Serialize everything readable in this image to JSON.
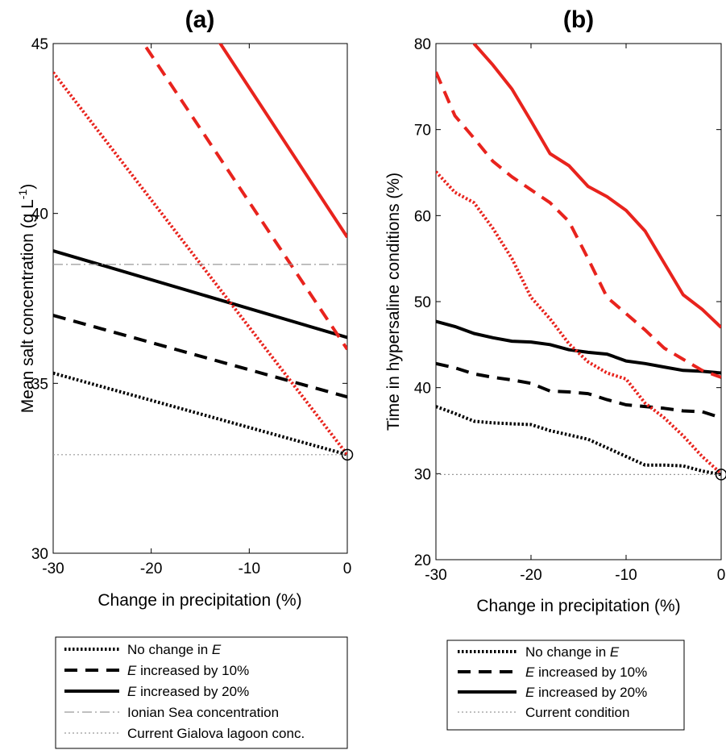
{
  "chart_data": [
    {
      "type": "line",
      "title": "(a)",
      "xlabel": "Change in precipitation (%)",
      "ylabel": "Mean salt concentration (g L",
      "ylabel_sup": "-1",
      "ylabel_close": ")",
      "xlim": [
        -30,
        0
      ],
      "ylim": [
        30,
        45
      ],
      "xticks": [
        -30,
        -20,
        -10,
        0
      ],
      "yticks": [
        30,
        35,
        40,
        45
      ],
      "legend": [
        {
          "label": "No change in ",
          "label_italic": "E",
          "style": "dotted"
        },
        {
          "label": " increased by 10%",
          "label_italic_prefix": "E",
          "style": "dashed"
        },
        {
          "label": " increased by 20%",
          "label_italic_prefix": "E",
          "style": "solid"
        },
        {
          "label": "Ionian Sea concentration",
          "style": "dashdot"
        },
        {
          "label": "Current Gialova lagoon conc.",
          "style": "thin-dotted"
        }
      ],
      "series": [
        {
          "color": "#000000",
          "style": "dotted",
          "points": [
            [
              -30,
              35.3
            ],
            [
              0,
              32.9
            ]
          ]
        },
        {
          "color": "#000000",
          "style": "dashed",
          "points": [
            [
              -30,
              37.0
            ],
            [
              0,
              34.6
            ]
          ]
        },
        {
          "color": "#000000",
          "style": "solid",
          "points": [
            [
              -30,
              38.9
            ],
            [
              0,
              36.35
            ]
          ]
        },
        {
          "color": "#e8231d",
          "style": "dotted",
          "points": [
            [
              -30,
              44.15
            ],
            [
              0,
              32.9
            ]
          ]
        },
        {
          "color": "#e8231d",
          "style": "dashed",
          "points": [
            [
              -30,
              49.0
            ],
            [
              0,
              36.0
            ]
          ]
        },
        {
          "color": "#e8231d",
          "style": "solid",
          "points": [
            [
              -30,
              52.5
            ],
            [
              0,
              39.3
            ]
          ]
        },
        {
          "color": "#999999",
          "style": "dashdot",
          "points": [
            [
              -30,
              38.5
            ],
            [
              0,
              38.5
            ]
          ]
        },
        {
          "color": "#999999",
          "style": "thin-dotted",
          "points": [
            [
              -30,
              32.9
            ],
            [
              0,
              32.9
            ]
          ]
        }
      ],
      "marker": {
        "x": 0,
        "y": 32.9,
        "shape": "circle"
      }
    },
    {
      "type": "line",
      "title": "(b)",
      "xlabel": "Change in precipitation (%)",
      "ylabel": "Time in hypersaline conditions (%)",
      "xlim": [
        -30,
        0
      ],
      "ylim": [
        20,
        80
      ],
      "xticks": [
        -30,
        -20,
        -10,
        0
      ],
      "yticks": [
        20,
        30,
        40,
        50,
        60,
        70,
        80
      ],
      "legend": [
        {
          "label": "No change in ",
          "label_italic": "E",
          "style": "dotted"
        },
        {
          "label": " increased by 10%",
          "label_italic_prefix": "E",
          "style": "dashed"
        },
        {
          "label": " increased by 20%",
          "label_italic_prefix": "E",
          "style": "solid"
        },
        {
          "label": "Current condition",
          "style": "thin-dotted"
        }
      ],
      "series": [
        {
          "color": "#000000",
          "style": "dotted",
          "points": [
            [
              -30,
              37.8
            ],
            [
              -28,
              37.0
            ],
            [
              -26,
              36.1
            ],
            [
              -24,
              35.9
            ],
            [
              -22,
              35.8
            ],
            [
              -20,
              35.7
            ],
            [
              -18,
              35.0
            ],
            [
              -16,
              34.5
            ],
            [
              -14,
              34.0
            ],
            [
              -12,
              33.0
            ],
            [
              -10,
              32.0
            ],
            [
              -8,
              31.0
            ],
            [
              -6,
              31.0
            ],
            [
              -4,
              30.9
            ],
            [
              -2,
              30.3
            ],
            [
              0,
              29.9
            ]
          ]
        },
        {
          "color": "#000000",
          "style": "dashed",
          "points": [
            [
              -30,
              42.8
            ],
            [
              -28,
              42.3
            ],
            [
              -26,
              41.6
            ],
            [
              -24,
              41.2
            ],
            [
              -22,
              40.9
            ],
            [
              -20,
              40.5
            ],
            [
              -18,
              39.6
            ],
            [
              -16,
              39.5
            ],
            [
              -14,
              39.3
            ],
            [
              -12,
              38.6
            ],
            [
              -10,
              38.0
            ],
            [
              -8,
              37.8
            ],
            [
              -6,
              37.6
            ],
            [
              -4,
              37.3
            ],
            [
              -2,
              37.2
            ],
            [
              0,
              36.5
            ]
          ]
        },
        {
          "color": "#000000",
          "style": "solid",
          "points": [
            [
              -30,
              47.7
            ],
            [
              -28,
              47.1
            ],
            [
              -26,
              46.3
            ],
            [
              -24,
              45.8
            ],
            [
              -22,
              45.4
            ],
            [
              -20,
              45.3
            ],
            [
              -18,
              45.0
            ],
            [
              -16,
              44.4
            ],
            [
              -14,
              44.1
            ],
            [
              -12,
              43.9
            ],
            [
              -10,
              43.1
            ],
            [
              -8,
              42.8
            ],
            [
              -6,
              42.4
            ],
            [
              -4,
              42.0
            ],
            [
              -2,
              41.9
            ],
            [
              0,
              41.7
            ]
          ]
        },
        {
          "color": "#e8231d",
          "style": "dotted",
          "points": [
            [
              -30,
              65.1
            ],
            [
              -28,
              62.7
            ],
            [
              -26,
              61.5
            ],
            [
              -24,
              58.5
            ],
            [
              -22,
              55.0
            ],
            [
              -20,
              50.5
            ],
            [
              -18,
              48.0
            ],
            [
              -16,
              45.1
            ],
            [
              -14,
              43.0
            ],
            [
              -12,
              41.7
            ],
            [
              -10,
              41.0
            ],
            [
              -8,
              38.2
            ],
            [
              -6,
              36.5
            ],
            [
              -4,
              34.4
            ],
            [
              -2,
              32.0
            ],
            [
              0,
              30.0
            ]
          ]
        },
        {
          "color": "#e8231d",
          "style": "dashed",
          "points": [
            [
              -30,
              76.7
            ],
            [
              -28,
              71.6
            ],
            [
              -26,
              69.0
            ],
            [
              -24,
              66.3
            ],
            [
              -22,
              64.5
            ],
            [
              -20,
              63.0
            ],
            [
              -18,
              61.5
            ],
            [
              -16,
              59.3
            ],
            [
              -14,
              55.0
            ],
            [
              -12,
              50.5
            ],
            [
              -10,
              48.6
            ],
            [
              -8,
              46.7
            ],
            [
              -6,
              44.6
            ],
            [
              -4,
              43.3
            ],
            [
              -2,
              42.0
            ],
            [
              0,
              41.2
            ]
          ]
        },
        {
          "color": "#e8231d",
          "style": "solid",
          "points": [
            [
              -26,
              80.0
            ],
            [
              -24,
              77.5
            ],
            [
              -22,
              74.7
            ],
            [
              -20,
              71.0
            ],
            [
              -18,
              67.2
            ],
            [
              -16,
              65.8
            ],
            [
              -14,
              63.4
            ],
            [
              -12,
              62.2
            ],
            [
              -10,
              60.6
            ],
            [
              -8,
              58.2
            ],
            [
              -6,
              54.5
            ],
            [
              -4,
              50.8
            ],
            [
              -2,
              49.1
            ],
            [
              0,
              47.0
            ]
          ]
        },
        {
          "color": "#999999",
          "style": "thin-dotted",
          "points": [
            [
              -30,
              29.9
            ],
            [
              0,
              29.9
            ]
          ]
        }
      ],
      "marker": {
        "x": 0,
        "y": 29.9,
        "shape": "circle"
      }
    }
  ]
}
